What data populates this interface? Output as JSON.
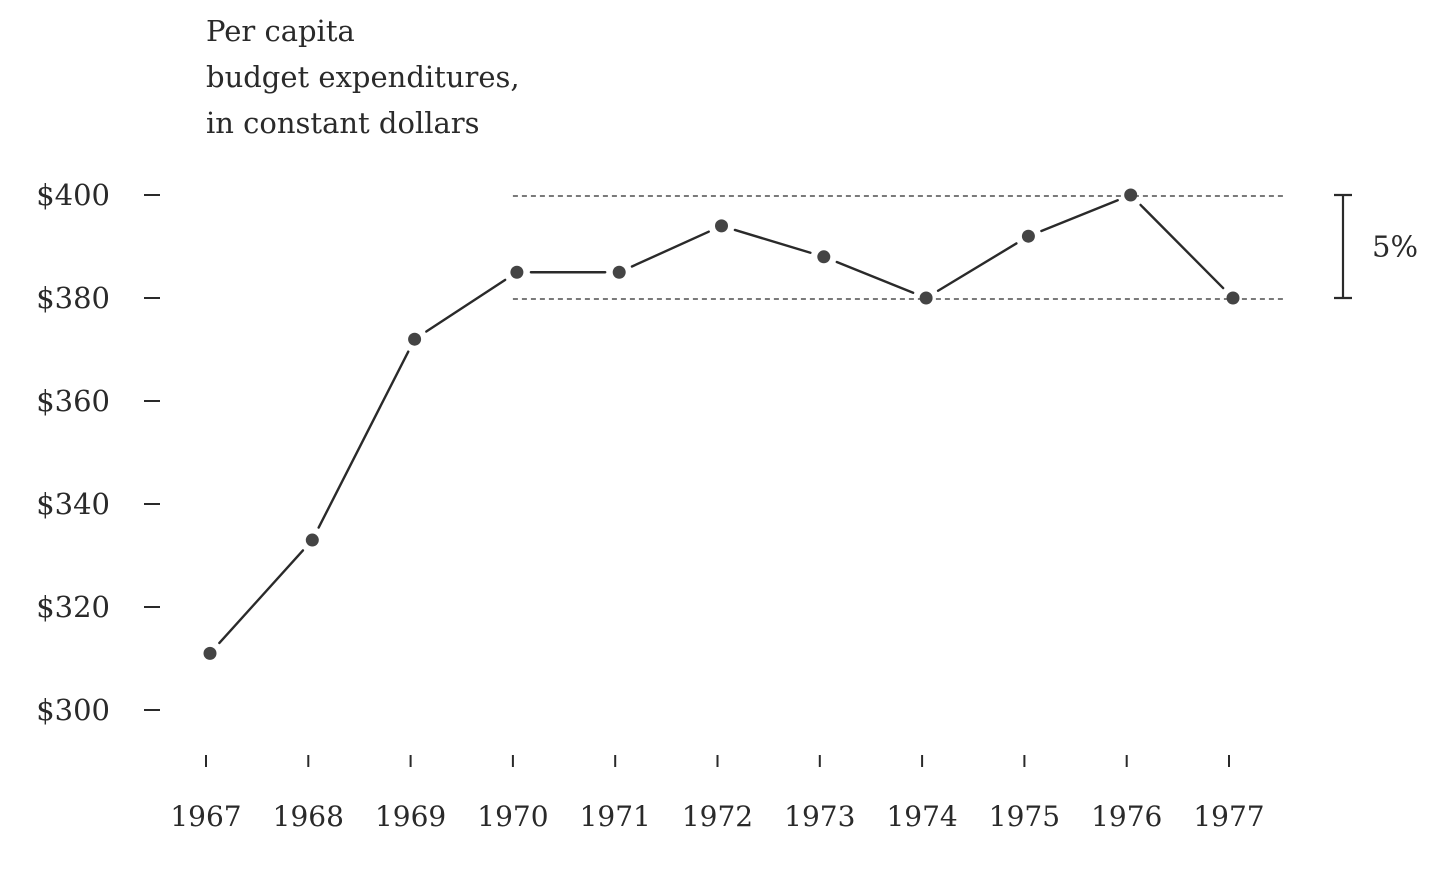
{
  "chart_data": {
    "type": "line",
    "title_lines": [
      "Per capita",
      "budget expenditures,",
      "in constant dollars"
    ],
    "x": [
      "1967",
      "1968",
      "1969",
      "1970",
      "1971",
      "1972",
      "1973",
      "1974",
      "1975",
      "1976",
      "1977"
    ],
    "series": [
      {
        "values": [
          311,
          333,
          372,
          385,
          385,
          394,
          388,
          380,
          392,
          400,
          380
        ]
      }
    ],
    "y_ticks": [
      300,
      320,
      340,
      360,
      380,
      400
    ],
    "y_tick_labels": [
      "$300",
      "$320",
      "$340",
      "$360",
      "$380",
      "$400"
    ],
    "ylim": [
      300,
      400
    ],
    "reference_lines": [
      400,
      380
    ],
    "range_annotation": {
      "from": 380,
      "to": 400,
      "label": "5%"
    },
    "grid": false,
    "colors": {
      "line": "#2a2a2a",
      "marker": "#444444",
      "text": "#2a2a2a"
    }
  }
}
